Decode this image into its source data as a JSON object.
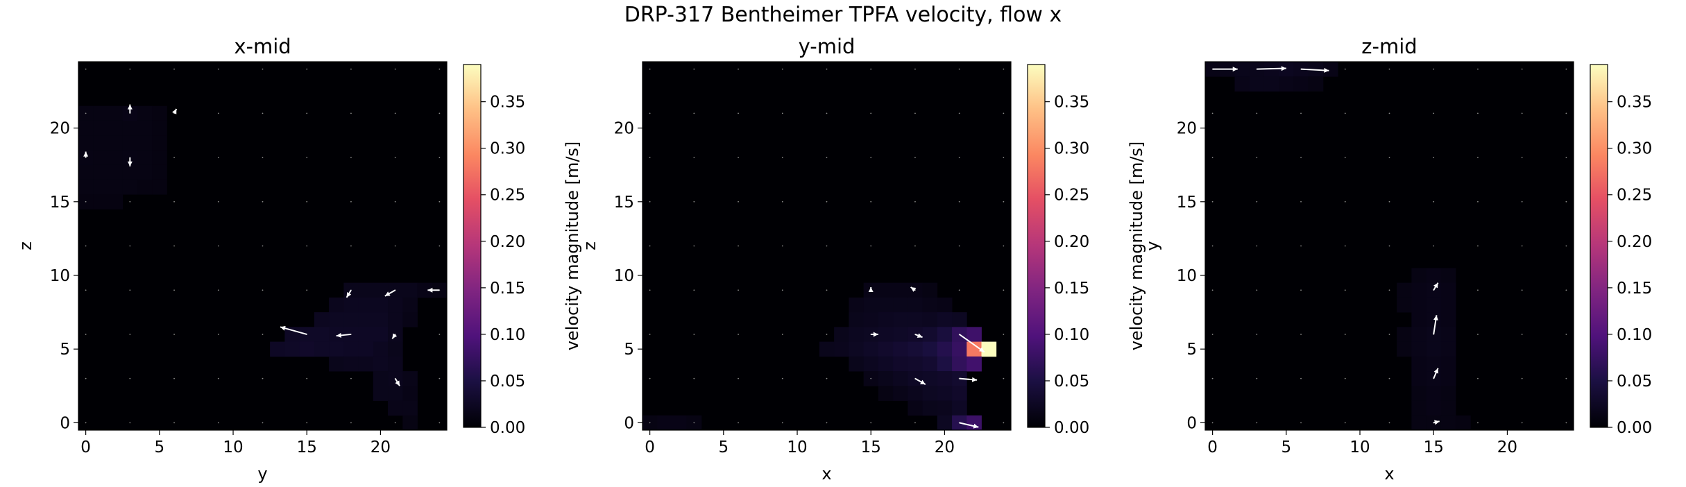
{
  "suptitle": "DRP-317 Bentheimer TPFA velocity, flow x",
  "colormap": "magma",
  "colors": {
    "background": "#ffffff",
    "axes_face": "#000004",
    "quiver": "#ffffff"
  },
  "chart_data": [
    {
      "type": "heatmap",
      "title": "x-mid",
      "xlabel": "y",
      "ylabel": "z",
      "xlim": [
        -0.5,
        24.5
      ],
      "ylim": [
        -0.5,
        24.5
      ],
      "xticks": [
        0,
        5,
        10,
        15,
        20
      ],
      "yticks": [
        0,
        5,
        10,
        15,
        20
      ],
      "colorbar": {
        "label": "velocity magnitude [m/s]",
        "range": [
          0,
          0.39
        ],
        "ticks": [
          0.0,
          0.05,
          0.1,
          0.15,
          0.2,
          0.25,
          0.3,
          0.35
        ],
        "tick_labels": [
          "0.00",
          "0.05",
          "0.10",
          "0.15",
          "0.20",
          "0.25",
          "0.30",
          "0.35"
        ]
      },
      "cells": [
        [
          0,
          21,
          0.012
        ],
        [
          1,
          21,
          0.012
        ],
        [
          2,
          21,
          0.012
        ],
        [
          3,
          21,
          0.014
        ],
        [
          4,
          21,
          0.012
        ],
        [
          5,
          21,
          0.01
        ],
        [
          0,
          20,
          0.012
        ],
        [
          1,
          20,
          0.012
        ],
        [
          2,
          20,
          0.012
        ],
        [
          3,
          20,
          0.012
        ],
        [
          4,
          20,
          0.012
        ],
        [
          5,
          20,
          0.01
        ],
        [
          0,
          19,
          0.012
        ],
        [
          1,
          19,
          0.012
        ],
        [
          2,
          19,
          0.012
        ],
        [
          3,
          19,
          0.012
        ],
        [
          4,
          19,
          0.012
        ],
        [
          5,
          19,
          0.01
        ],
        [
          0,
          18,
          0.013
        ],
        [
          1,
          18,
          0.012
        ],
        [
          2,
          18,
          0.012
        ],
        [
          3,
          18,
          0.013
        ],
        [
          4,
          18,
          0.012
        ],
        [
          5,
          18,
          0.01
        ],
        [
          0,
          17,
          0.012
        ],
        [
          1,
          17,
          0.012
        ],
        [
          2,
          17,
          0.012
        ],
        [
          3,
          17,
          0.012
        ],
        [
          4,
          17,
          0.012
        ],
        [
          5,
          17,
          0.01
        ],
        [
          0,
          16,
          0.012
        ],
        [
          1,
          16,
          0.012
        ],
        [
          2,
          16,
          0.012
        ],
        [
          3,
          16,
          0.012
        ],
        [
          4,
          16,
          0.01
        ],
        [
          5,
          16,
          0.01
        ],
        [
          0,
          15,
          0.01
        ],
        [
          1,
          15,
          0.01
        ],
        [
          2,
          15,
          0.01
        ],
        [
          18,
          9,
          0.018
        ],
        [
          19,
          9,
          0.018
        ],
        [
          20,
          9,
          0.018
        ],
        [
          21,
          9,
          0.018
        ],
        [
          22,
          9,
          0.018
        ],
        [
          23,
          9,
          0.014
        ],
        [
          24,
          9,
          0.012
        ],
        [
          17,
          8,
          0.02
        ],
        [
          18,
          8,
          0.022
        ],
        [
          19,
          8,
          0.022
        ],
        [
          20,
          8,
          0.022
        ],
        [
          21,
          8,
          0.02
        ],
        [
          22,
          8,
          0.016
        ],
        [
          16,
          7,
          0.022
        ],
        [
          17,
          7,
          0.024
        ],
        [
          18,
          7,
          0.024
        ],
        [
          19,
          7,
          0.024
        ],
        [
          20,
          7,
          0.024
        ],
        [
          21,
          7,
          0.02
        ],
        [
          22,
          7,
          0.014
        ],
        [
          14,
          6,
          0.026
        ],
        [
          15,
          6,
          0.028
        ],
        [
          16,
          6,
          0.028
        ],
        [
          17,
          6,
          0.026
        ],
        [
          18,
          6,
          0.026
        ],
        [
          19,
          6,
          0.026
        ],
        [
          20,
          6,
          0.026
        ],
        [
          21,
          6,
          0.02
        ],
        [
          13,
          5,
          0.026
        ],
        [
          14,
          5,
          0.028
        ],
        [
          15,
          5,
          0.03
        ],
        [
          16,
          5,
          0.028
        ],
        [
          17,
          5,
          0.028
        ],
        [
          18,
          5,
          0.026
        ],
        [
          19,
          5,
          0.026
        ],
        [
          20,
          5,
          0.022
        ],
        [
          21,
          5,
          0.018
        ],
        [
          17,
          4,
          0.018
        ],
        [
          18,
          4,
          0.02
        ],
        [
          19,
          4,
          0.02
        ],
        [
          20,
          4,
          0.022
        ],
        [
          21,
          4,
          0.02
        ],
        [
          20,
          3,
          0.018
        ],
        [
          21,
          3,
          0.02
        ],
        [
          22,
          3,
          0.016
        ],
        [
          20,
          2,
          0.018
        ],
        [
          21,
          2,
          0.018
        ],
        [
          22,
          2,
          0.014
        ],
        [
          21,
          1,
          0.016
        ],
        [
          22,
          1,
          0.016
        ],
        [
          22,
          0,
          0.012
        ]
      ],
      "arrows": [
        [
          3,
          21,
          0,
          0.6
        ],
        [
          6,
          21,
          0.15,
          0.3
        ],
        [
          0,
          18,
          0,
          0.4
        ],
        [
          3,
          18,
          0,
          -0.6
        ],
        [
          15,
          6,
          -1.8,
          0.5
        ],
        [
          18,
          6,
          -1.0,
          -0.1
        ],
        [
          21,
          6,
          -0.2,
          -0.3
        ],
        [
          18,
          9,
          -0.3,
          -0.5
        ],
        [
          21,
          9,
          -0.7,
          -0.4
        ],
        [
          24,
          9,
          -0.8,
          0
        ],
        [
          21,
          3,
          0.3,
          -0.5
        ]
      ]
    },
    {
      "type": "heatmap",
      "title": "y-mid",
      "xlabel": "x",
      "ylabel": "z",
      "xlim": [
        -0.5,
        24.5
      ],
      "ylim": [
        -0.5,
        24.5
      ],
      "xticks": [
        0,
        5,
        10,
        15,
        20
      ],
      "yticks": [
        0,
        5,
        10,
        15,
        20
      ],
      "colorbar": {
        "label": "velocity magnitude [m/s]",
        "range": [
          0,
          0.39
        ],
        "ticks": [
          0.0,
          0.05,
          0.1,
          0.15,
          0.2,
          0.25,
          0.3,
          0.35
        ],
        "tick_labels": [
          "0.00",
          "0.05",
          "0.10",
          "0.15",
          "0.20",
          "0.25",
          "0.30",
          "0.35"
        ]
      },
      "cells": [
        [
          15,
          9,
          0.014
        ],
        [
          16,
          9,
          0.014
        ],
        [
          17,
          9,
          0.014
        ],
        [
          18,
          9,
          0.014
        ],
        [
          19,
          9,
          0.012
        ],
        [
          14,
          8,
          0.016
        ],
        [
          15,
          8,
          0.018
        ],
        [
          16,
          8,
          0.018
        ],
        [
          17,
          8,
          0.018
        ],
        [
          18,
          8,
          0.018
        ],
        [
          19,
          8,
          0.016
        ],
        [
          20,
          8,
          0.014
        ],
        [
          14,
          7,
          0.018
        ],
        [
          15,
          7,
          0.02
        ],
        [
          16,
          7,
          0.022
        ],
        [
          17,
          7,
          0.024
        ],
        [
          18,
          7,
          0.024
        ],
        [
          19,
          7,
          0.022
        ],
        [
          20,
          7,
          0.026
        ],
        [
          21,
          7,
          0.024
        ],
        [
          13,
          6,
          0.018
        ],
        [
          14,
          6,
          0.022
        ],
        [
          15,
          6,
          0.024
        ],
        [
          16,
          6,
          0.026
        ],
        [
          17,
          6,
          0.028
        ],
        [
          18,
          6,
          0.03
        ],
        [
          19,
          6,
          0.034
        ],
        [
          20,
          6,
          0.045
        ],
        [
          21,
          6,
          0.07
        ],
        [
          22,
          6,
          0.082
        ],
        [
          12,
          5,
          0.018
        ],
        [
          13,
          5,
          0.02
        ],
        [
          14,
          5,
          0.024
        ],
        [
          15,
          5,
          0.028
        ],
        [
          16,
          5,
          0.032
        ],
        [
          17,
          5,
          0.036
        ],
        [
          18,
          5,
          0.04
        ],
        [
          19,
          5,
          0.046
        ],
        [
          20,
          5,
          0.058
        ],
        [
          21,
          5,
          0.075
        ],
        [
          22,
          5,
          0.28
        ],
        [
          23,
          5,
          0.39
        ],
        [
          14,
          4,
          0.018
        ],
        [
          15,
          4,
          0.022
        ],
        [
          16,
          4,
          0.026
        ],
        [
          17,
          4,
          0.03
        ],
        [
          18,
          4,
          0.032
        ],
        [
          19,
          4,
          0.036
        ],
        [
          20,
          4,
          0.05
        ],
        [
          21,
          4,
          0.07
        ],
        [
          22,
          4,
          0.085
        ],
        [
          15,
          3,
          0.014
        ],
        [
          16,
          3,
          0.018
        ],
        [
          17,
          3,
          0.022
        ],
        [
          18,
          3,
          0.026
        ],
        [
          19,
          3,
          0.028
        ],
        [
          20,
          3,
          0.03
        ],
        [
          21,
          3,
          0.034
        ],
        [
          16,
          2,
          0.012
        ],
        [
          17,
          2,
          0.016
        ],
        [
          18,
          2,
          0.02
        ],
        [
          19,
          2,
          0.024
        ],
        [
          20,
          2,
          0.026
        ],
        [
          21,
          2,
          0.03
        ],
        [
          18,
          1,
          0.014
        ],
        [
          19,
          1,
          0.018
        ],
        [
          20,
          1,
          0.02
        ],
        [
          21,
          1,
          0.026
        ],
        [
          0,
          0,
          0.012
        ],
        [
          1,
          0,
          0.014
        ],
        [
          2,
          0,
          0.014
        ],
        [
          3,
          0,
          0.012
        ],
        [
          20,
          0,
          0.024
        ],
        [
          21,
          0,
          0.06
        ],
        [
          22,
          0,
          0.08
        ]
      ],
      "arrows": [
        [
          15,
          9,
          0,
          0.2
        ],
        [
          18,
          9,
          -0.3,
          0.2
        ],
        [
          15,
          6,
          0.5,
          0
        ],
        [
          18,
          6,
          0.5,
          -0.2
        ],
        [
          21,
          6,
          1.7,
          -1.2
        ],
        [
          18,
          3,
          0.7,
          -0.4
        ],
        [
          21,
          3,
          1.2,
          -0.1
        ],
        [
          21,
          0,
          1.3,
          -0.3
        ]
      ]
    },
    {
      "type": "heatmap",
      "title": "z-mid",
      "xlabel": "x",
      "ylabel": "y",
      "xlim": [
        -0.5,
        24.5
      ],
      "ylim": [
        -0.5,
        24.5
      ],
      "xticks": [
        0,
        5,
        10,
        15,
        20
      ],
      "yticks": [
        0,
        5,
        10,
        15,
        20
      ],
      "colorbar": {
        "label": "velocity magnitude [m/s]",
        "range": [
          0,
          0.39
        ],
        "ticks": [
          0.0,
          0.05,
          0.1,
          0.15,
          0.2,
          0.25,
          0.3,
          0.35
        ],
        "tick_labels": [
          "0.00",
          "0.05",
          "0.10",
          "0.15",
          "0.20",
          "0.25",
          "0.30",
          "0.35"
        ]
      },
      "cells": [
        [
          0,
          24,
          0.014
        ],
        [
          1,
          24,
          0.016
        ],
        [
          2,
          24,
          0.018
        ],
        [
          3,
          24,
          0.018
        ],
        [
          4,
          24,
          0.02
        ],
        [
          5,
          24,
          0.022
        ],
        [
          6,
          24,
          0.02
        ],
        [
          7,
          24,
          0.018
        ],
        [
          8,
          24,
          0.014
        ],
        [
          2,
          23,
          0.016
        ],
        [
          3,
          23,
          0.018
        ],
        [
          4,
          23,
          0.018
        ],
        [
          5,
          23,
          0.016
        ],
        [
          6,
          23,
          0.014
        ],
        [
          7,
          23,
          0.012
        ],
        [
          14,
          10,
          0.012
        ],
        [
          15,
          10,
          0.014
        ],
        [
          16,
          10,
          0.012
        ],
        [
          13,
          9,
          0.012
        ],
        [
          14,
          9,
          0.014
        ],
        [
          15,
          9,
          0.016
        ],
        [
          16,
          9,
          0.014
        ],
        [
          13,
          8,
          0.012
        ],
        [
          14,
          8,
          0.014
        ],
        [
          15,
          8,
          0.016
        ],
        [
          16,
          8,
          0.014
        ],
        [
          14,
          7,
          0.014
        ],
        [
          15,
          7,
          0.016
        ],
        [
          16,
          7,
          0.014
        ],
        [
          13,
          6,
          0.012
        ],
        [
          14,
          6,
          0.016
        ],
        [
          15,
          6,
          0.018
        ],
        [
          16,
          6,
          0.016
        ],
        [
          13,
          5,
          0.012
        ],
        [
          14,
          5,
          0.016
        ],
        [
          15,
          5,
          0.018
        ],
        [
          16,
          5,
          0.016
        ],
        [
          14,
          4,
          0.014
        ],
        [
          15,
          4,
          0.016
        ],
        [
          16,
          4,
          0.014
        ],
        [
          14,
          3,
          0.014
        ],
        [
          15,
          3,
          0.016
        ],
        [
          16,
          3,
          0.014
        ],
        [
          14,
          2,
          0.012
        ],
        [
          15,
          2,
          0.014
        ],
        [
          16,
          2,
          0.012
        ],
        [
          14,
          1,
          0.012
        ],
        [
          15,
          1,
          0.014
        ],
        [
          16,
          1,
          0.012
        ],
        [
          14,
          0,
          0.012
        ],
        [
          15,
          0,
          0.012
        ],
        [
          16,
          0,
          0.012
        ],
        [
          17,
          0,
          0.01
        ]
      ],
      "arrows": [
        [
          0,
          24,
          1.7,
          0
        ],
        [
          3,
          24,
          2.0,
          0.05
        ],
        [
          6,
          24,
          1.9,
          -0.1
        ],
        [
          15,
          9,
          0.3,
          0.5
        ],
        [
          15,
          6,
          0.2,
          1.3
        ],
        [
          15,
          3,
          0.3,
          0.7
        ],
        [
          15,
          0,
          0.4,
          0.1
        ]
      ]
    }
  ]
}
